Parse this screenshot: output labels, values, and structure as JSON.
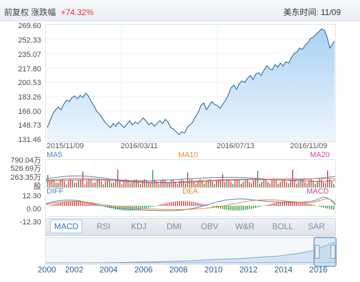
{
  "header": {
    "left_label": "前复权 涨跌幅",
    "change_pct": "+74.32%",
    "right_label": "美东时间: 11/09"
  },
  "price_axis": [
    "269.60",
    "252.33",
    "235.07",
    "217.80",
    "200.53",
    "183.26",
    "166.00",
    "148.73",
    "131.46"
  ],
  "date_labels": [
    "2015/11/09",
    "2016/03/11",
    "2016/07/13",
    "2016/11/09"
  ],
  "volume_panel": {
    "ma_labels": [
      "MA5",
      "MA10",
      "MA20"
    ],
    "axis": [
      "790.04万",
      "526.69万",
      "263.35万",
      "股"
    ]
  },
  "macd_panel": {
    "labels": [
      "DIFF",
      "DEA",
      "MACD"
    ],
    "axis": [
      "12.30",
      "0.00",
      "-12.30"
    ]
  },
  "indicator_tabs": [
    "MACD",
    "RSI",
    "KDJ",
    "DMI",
    "OBV",
    "W&R",
    "BOLL",
    "SAR"
  ],
  "active_tab": "MACD",
  "navigator_years": [
    "2000",
    "2002",
    "2004",
    "2006",
    "2008",
    "2010",
    "2012",
    "2014",
    "2016"
  ],
  "colors": {
    "price_line": "#3a6fa8",
    "area_fill": "#bfdcf5",
    "up": "#d23b3b",
    "down": "#2f9a3a",
    "ma5": "#4b83c4",
    "ma10": "#e68a2e",
    "ma20": "#d03fa0",
    "change_text": "#e0322f"
  }
}
